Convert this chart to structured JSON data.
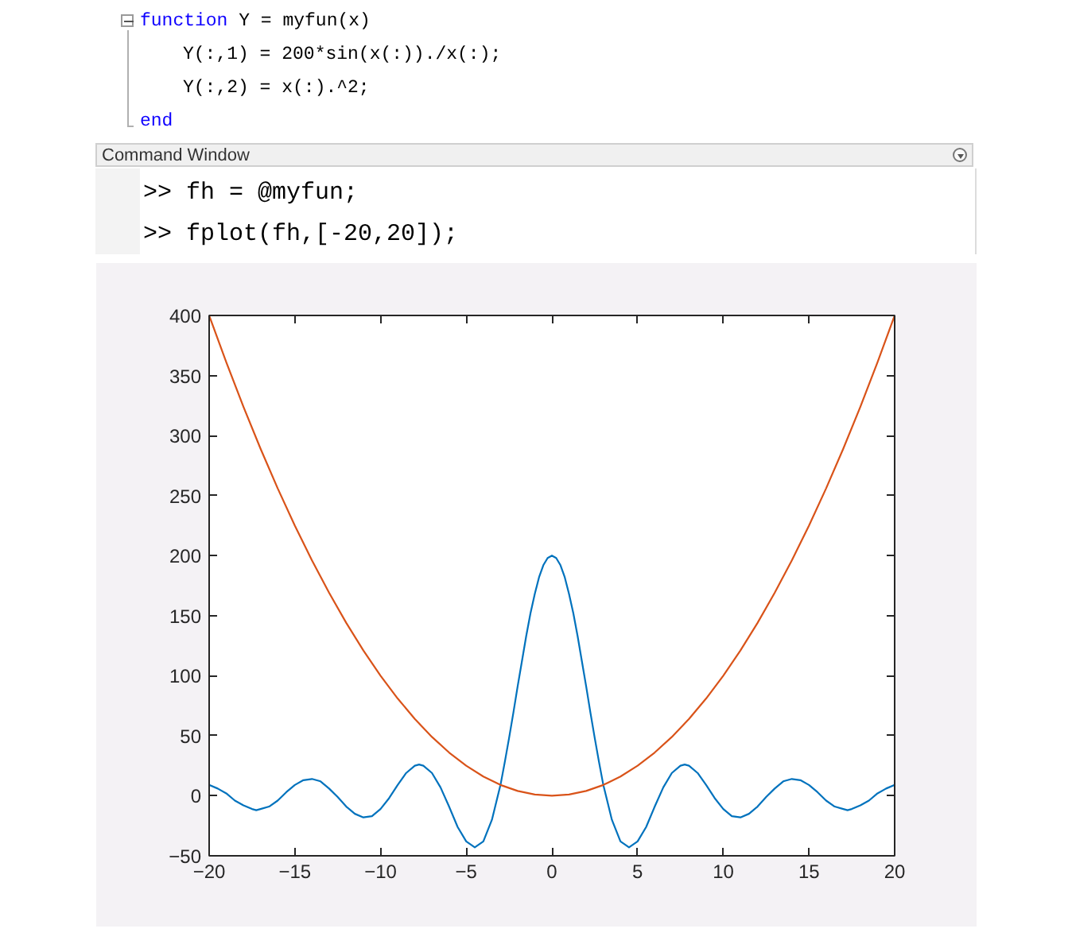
{
  "chart_data": {
    "type": "line",
    "annotations": [
      "function Y = myfun(x)",
      "Y(:,1) = 200*sin(x(:))./x(:);",
      "Y(:,2) = x(:).^2;",
      "end",
      "Command Window",
      ">> fh = @myfun;",
      ">> fplot(fh,[-20,20]);"
    ],
    "xlim": [
      -20,
      20
    ],
    "ylim": [
      -50,
      400
    ],
    "xticks": [
      -20,
      -15,
      -10,
      -5,
      0,
      5,
      10,
      15,
      20
    ],
    "yticks": [
      -50,
      0,
      50,
      100,
      150,
      200,
      250,
      300,
      350,
      400
    ],
    "series": [
      {
        "color": "#0072bd",
        "x": [
          -20,
          -19.5,
          -19,
          -18.5,
          -18,
          -17.5,
          -17.25,
          -17,
          -16.5,
          -16,
          -15.5,
          -15,
          -14.5,
          -14,
          -13.5,
          -13,
          -12.5,
          -12,
          -11.5,
          -11,
          -10.5,
          -10,
          -9.5,
          -9,
          -8.5,
          -8,
          -7.75,
          -7.5,
          -7,
          -6.5,
          -6,
          -5.5,
          -5,
          -4.5,
          -4,
          -3.5,
          -3,
          -2.75,
          -2.5,
          -2.25,
          -2,
          -1.75,
          -1.5,
          -1.25,
          -1,
          -0.75,
          -0.5,
          -0.25,
          0,
          0.25,
          0.5,
          0.75,
          1,
          1.25,
          1.5,
          1.75,
          2,
          2.25,
          2.5,
          2.75,
          3,
          3.5,
          4,
          4.5,
          5,
          5.5,
          6,
          6.5,
          7,
          7.5,
          7.75,
          8,
          8.5,
          9,
          9.5,
          10,
          10.5,
          11,
          11.5,
          12,
          12.5,
          13,
          13.5,
          14,
          14.5,
          15,
          15.5,
          16,
          16.5,
          17,
          17.25,
          17.5,
          18,
          18.5,
          19,
          19.5,
          20
        ],
        "values": [
          9,
          6,
          2,
          -4,
          -8,
          -11,
          -12,
          -11,
          -9,
          -4,
          3,
          9,
          13,
          14,
          12,
          6,
          -1,
          -9,
          -15,
          -18,
          -17,
          -11,
          -2,
          9,
          19,
          25,
          26,
          25,
          19,
          7,
          -9,
          -26,
          -38,
          -43,
          -38,
          -20,
          9,
          28,
          48,
          69,
          91,
          112,
          133,
          152,
          168,
          182,
          192,
          198,
          200,
          198,
          192,
          182,
          168,
          152,
          133,
          112,
          91,
          69,
          48,
          28,
          9,
          -20,
          -38,
          -43,
          -38,
          -26,
          -9,
          7,
          19,
          25,
          26,
          25,
          19,
          9,
          -2,
          -11,
          -17,
          -18,
          -15,
          -9,
          -1,
          6,
          12,
          14,
          13,
          9,
          3,
          -4,
          -9,
          -11,
          -12,
          -11,
          -8,
          -4,
          2,
          6,
          9
        ]
      },
      {
        "color": "#d95319",
        "x": [
          -20,
          -19,
          -18,
          -17,
          -16,
          -15,
          -14,
          -13,
          -12,
          -11,
          -10,
          -9,
          -8,
          -7,
          -6,
          -5,
          -4,
          -3,
          -2,
          -1,
          0,
          1,
          2,
          3,
          4,
          5,
          6,
          7,
          8,
          9,
          10,
          11,
          12,
          13,
          14,
          15,
          16,
          17,
          18,
          19,
          20
        ],
        "values": [
          400,
          361,
          324,
          289,
          256,
          225,
          196,
          169,
          144,
          121,
          100,
          81,
          64,
          49,
          36,
          25,
          16,
          9,
          4,
          1,
          0,
          1,
          4,
          9,
          16,
          25,
          36,
          49,
          64,
          81,
          100,
          121,
          144,
          169,
          196,
          225,
          256,
          289,
          324,
          361,
          400
        ]
      }
    ]
  }
}
